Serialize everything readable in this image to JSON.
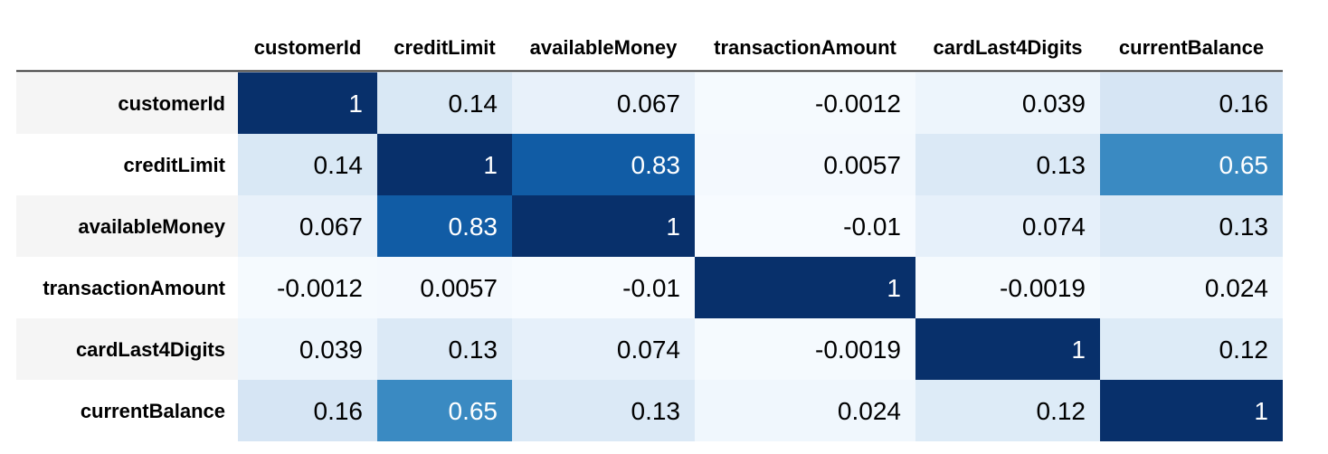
{
  "chart_data": {
    "type": "heatmap",
    "columns": [
      "customerId",
      "creditLimit",
      "availableMoney",
      "transactionAmount",
      "cardLast4Digits",
      "currentBalance"
    ],
    "rows": [
      "customerId",
      "creditLimit",
      "availableMoney",
      "transactionAmount",
      "cardLast4Digits",
      "currentBalance"
    ],
    "values": [
      [
        1,
        0.14,
        0.067,
        -0.0012,
        0.039,
        0.16
      ],
      [
        0.14,
        1,
        0.83,
        0.0057,
        0.13,
        0.65
      ],
      [
        0.067,
        0.83,
        1,
        -0.01,
        0.074,
        0.13
      ],
      [
        -0.0012,
        0.0057,
        -0.01,
        1,
        -0.0019,
        0.024
      ],
      [
        0.039,
        0.13,
        0.074,
        -0.0019,
        1,
        0.12
      ],
      [
        0.16,
        0.65,
        0.13,
        0.024,
        0.12,
        1
      ]
    ],
    "labels": [
      [
        "1",
        "0.14",
        "0.067",
        "-0.0012",
        "0.039",
        "0.16"
      ],
      [
        "0.14",
        "1",
        "0.83",
        "0.0057",
        "0.13",
        "0.65"
      ],
      [
        "0.067",
        "0.83",
        "1",
        "-0.01",
        "0.074",
        "0.13"
      ],
      [
        "-0.0012",
        "0.0057",
        "-0.01",
        "1",
        "-0.0019",
        "0.024"
      ],
      [
        "0.039",
        "0.13",
        "0.074",
        "-0.0019",
        "1",
        "0.12"
      ],
      [
        "0.16",
        "0.65",
        "0.13",
        "0.024",
        "0.12",
        "1"
      ]
    ],
    "colormap": "Blues",
    "colors": {
      "low": "#f7fbff",
      "high": "#08306b",
      "light_text": "#ffffff",
      "dark_text": "#000000",
      "row_header_bg": "#f5f5f5",
      "rule": "#000000"
    }
  }
}
